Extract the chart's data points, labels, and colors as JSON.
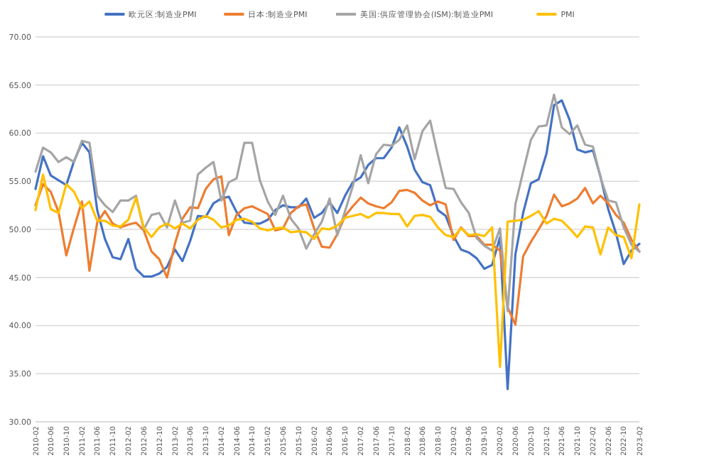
{
  "chart_data": {
    "type": "line",
    "x": [
      "2010-02",
      "2010-04",
      "2010-06",
      "2010-08",
      "2010-10",
      "2010-12",
      "2011-02",
      "2011-04",
      "2011-06",
      "2011-08",
      "2011-10",
      "2011-12",
      "2012-02",
      "2012-04",
      "2012-06",
      "2012-08",
      "2012-10",
      "2012-12",
      "2013-02",
      "2013-04",
      "2013-06",
      "2013-08",
      "2013-10",
      "2013-12",
      "2014-02",
      "2014-04",
      "2014-06",
      "2014-08",
      "2014-10",
      "2014-12",
      "2015-02",
      "2015-04",
      "2015-06",
      "2015-08",
      "2015-10",
      "2015-12",
      "2016-02",
      "2016-04",
      "2016-06",
      "2016-08",
      "2016-10",
      "2016-12",
      "2017-02",
      "2017-04",
      "2017-06",
      "2017-08",
      "2017-10",
      "2017-12",
      "2018-02",
      "2018-04",
      "2018-06",
      "2018-08",
      "2018-10",
      "2018-12",
      "2019-02",
      "2019-04",
      "2019-06",
      "2019-08",
      "2019-10",
      "2019-12",
      "2020-02",
      "2020-04",
      "2020-06",
      "2020-08",
      "2020-10",
      "2020-12",
      "2021-02",
      "2021-04",
      "2021-06",
      "2021-08",
      "2021-10",
      "2021-12",
      "2022-02",
      "2022-04",
      "2022-06",
      "2022-08",
      "2022-10",
      "2022-12",
      "2023-02"
    ],
    "series": [
      {
        "name": "欧元区:制造业PMI",
        "color": "#4472c4",
        "values": [
          54.2,
          57.6,
          55.6,
          55.1,
          54.6,
          57.1,
          59.0,
          58.0,
          52.0,
          49.0,
          47.1,
          46.9,
          49.0,
          45.9,
          45.1,
          45.1,
          45.4,
          46.1,
          47.9,
          46.7,
          48.8,
          51.4,
          51.3,
          52.7,
          53.2,
          53.4,
          51.8,
          50.7,
          50.6,
          50.6,
          51.0,
          52.0,
          52.5,
          52.3,
          52.3,
          53.2,
          51.2,
          51.7,
          52.8,
          51.7,
          53.5,
          54.9,
          55.4,
          56.7,
          57.4,
          57.4,
          58.5,
          60.6,
          58.6,
          56.2,
          54.9,
          54.6,
          52.0,
          51.4,
          49.3,
          47.9,
          47.6,
          47.0,
          45.9,
          46.3,
          49.2,
          33.4,
          47.4,
          51.7,
          54.8,
          55.2,
          57.9,
          62.9,
          63.4,
          61.4,
          58.3,
          58.0,
          58.2,
          55.5,
          52.1,
          49.6,
          46.4,
          47.8,
          48.5
        ]
      },
      {
        "name": "日本:制造业PMI",
        "color": "#ed7d31",
        "values": [
          52.5,
          54.7,
          53.9,
          51.8,
          47.3,
          50.2,
          52.9,
          45.7,
          50.7,
          51.9,
          50.6,
          50.2,
          50.5,
          50.7,
          49.9,
          47.7,
          46.9,
          45.0,
          48.5,
          51.1,
          52.3,
          52.2,
          54.2,
          55.2,
          55.5,
          49.4,
          51.5,
          52.2,
          52.4,
          52.0,
          51.6,
          49.9,
          50.1,
          51.7,
          52.4,
          52.6,
          50.1,
          48.2,
          48.1,
          49.5,
          51.4,
          52.4,
          53.3,
          52.7,
          52.4,
          52.2,
          52.8,
          54.0,
          54.1,
          53.8,
          53.0,
          52.5,
          52.9,
          52.6,
          48.9,
          50.2,
          49.3,
          49.3,
          48.4,
          48.4,
          47.8,
          41.9,
          40.1,
          47.2,
          48.7,
          50.0,
          51.4,
          53.6,
          52.4,
          52.7,
          53.2,
          54.3,
          52.7,
          53.5,
          52.7,
          51.5,
          50.7,
          48.9,
          47.7
        ]
      },
      {
        "name": "美国:供应管理协会(ISM):制造业PMI",
        "color": "#a5a5a5",
        "values": [
          56.0,
          58.5,
          58.0,
          57.0,
          57.5,
          57.0,
          59.2,
          59.0,
          53.5,
          52.5,
          51.8,
          53.0,
          53.0,
          53.5,
          50.0,
          51.5,
          51.7,
          50.2,
          53.0,
          50.7,
          50.9,
          55.7,
          56.4,
          57.0,
          53.0,
          54.9,
          55.3,
          59.0,
          59.0,
          55.1,
          52.9,
          51.5,
          53.5,
          51.1,
          50.1,
          48.0,
          49.5,
          50.8,
          53.2,
          49.4,
          51.9,
          54.5,
          57.7,
          54.8,
          57.8,
          58.8,
          58.7,
          59.3,
          60.8,
          57.3,
          60.2,
          61.3,
          57.7,
          54.3,
          54.2,
          52.8,
          51.7,
          49.1,
          48.3,
          47.8,
          50.1,
          41.5,
          52.6,
          56.0,
          59.3,
          60.7,
          60.8,
          64.0,
          60.6,
          59.9,
          60.8,
          58.8,
          58.6,
          55.4,
          53.0,
          52.8,
          50.2,
          48.4,
          47.7
        ]
      },
      {
        "name": "PMI",
        "color": "#ffc000",
        "values": [
          52.0,
          55.7,
          52.1,
          51.7,
          54.7,
          53.9,
          52.2,
          52.9,
          50.9,
          50.9,
          50.4,
          50.3,
          51.0,
          53.3,
          50.2,
          49.2,
          50.2,
          50.6,
          50.1,
          50.6,
          50.1,
          51.0,
          51.4,
          51.0,
          50.2,
          50.4,
          51.0,
          51.1,
          50.8,
          50.1,
          49.9,
          50.1,
          50.2,
          49.7,
          49.8,
          49.7,
          49.0,
          50.1,
          50.0,
          50.4,
          51.2,
          51.4,
          51.6,
          51.2,
          51.7,
          51.7,
          51.6,
          51.6,
          50.3,
          51.4,
          51.5,
          51.3,
          50.2,
          49.4,
          49.2,
          50.1,
          49.4,
          49.5,
          49.3,
          50.2,
          35.7,
          50.8,
          50.9,
          51.0,
          51.4,
          51.9,
          50.6,
          51.1,
          50.9,
          50.1,
          49.2,
          50.3,
          50.2,
          47.4,
          50.2,
          49.4,
          49.2,
          47.0,
          52.6
        ]
      }
    ],
    "xlim": [
      "2010-02",
      "2023-02"
    ],
    "xticks": [
      "2010-02",
      "2010-06",
      "2010-10",
      "2011-02",
      "2011-06",
      "2011-10",
      "2012-02",
      "2012-06",
      "2012-10",
      "2013-02",
      "2013-06",
      "2013-10",
      "2014-02",
      "2014-06",
      "2014-10",
      "2015-02",
      "2015-06",
      "2015-10",
      "2016-02",
      "2016-06",
      "2016-10",
      "2017-02",
      "2017-06",
      "2017-10",
      "2018-02",
      "2018-06",
      "2018-10",
      "2019-02",
      "2019-06",
      "2019-10",
      "2020-02",
      "2020-06",
      "2020-10",
      "2021-02",
      "2021-06",
      "2021-10",
      "2022-02",
      "2022-06",
      "2022-10",
      "2023-02"
    ],
    "ylim": [
      30,
      70
    ],
    "yticks": [
      {
        "value": 30,
        "label": "30.00"
      },
      {
        "value": 35,
        "label": "35.00"
      },
      {
        "value": 40,
        "label": "40.00"
      },
      {
        "value": 45,
        "label": "45.00"
      },
      {
        "value": 50,
        "label": "50.00"
      },
      {
        "value": 55,
        "label": "55.00"
      },
      {
        "value": 60,
        "label": "60.00"
      },
      {
        "value": 65,
        "label": "65.00"
      },
      {
        "value": 70,
        "label": "70.00"
      }
    ],
    "grid": "y",
    "legend": "top",
    "marker": "none",
    "line_style": "solid"
  }
}
